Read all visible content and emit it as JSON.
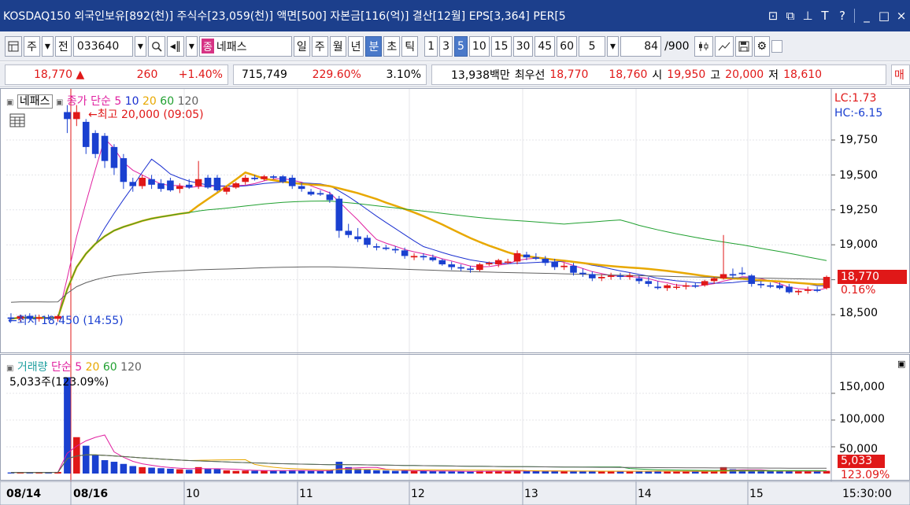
{
  "titlebar": {
    "text": "KOSDAQ150 외국인보유[892(천)] 주식수[23,059(천)] 액면[500] 자본금[116(억)] 결산[12월] EPS[3,364] PER[5",
    "buttons": [
      "⊡",
      "⧉",
      "⊥",
      "T",
      "?",
      "_",
      "□",
      "×"
    ]
  },
  "toolbar": {
    "type_label": "주",
    "prev_label": "전",
    "code": "033640",
    "name_badge": "종",
    "name": "네패스",
    "periods": [
      "일",
      "주",
      "월",
      "년",
      "분",
      "초",
      "틱"
    ],
    "active_period": "분",
    "intervals": [
      "1",
      "3",
      "5",
      "10",
      "15",
      "30",
      "45",
      "60"
    ],
    "active_interval": "5",
    "interval_select": "5",
    "count": "84",
    "count_total": "/900"
  },
  "pricebar": {
    "price": "18,770",
    "arrow": "▲",
    "change": "260",
    "change_pct": "+1.40%",
    "volume": "715,749",
    "vol_ratio": "229.60%",
    "turnover": "3.10%",
    "amount": "13,938백만",
    "best_label": "최우선",
    "ask": "18,770",
    "bid": "18,760",
    "open_label": "시",
    "open": "19,950",
    "high_label": "고",
    "high": "20,000",
    "low_label": "저",
    "low": "18,610",
    "more": "매"
  },
  "price_panel": {
    "legend_name": "네패스",
    "legend_ma": "종가 단순",
    "ma_periods": [
      "5",
      "10",
      "20",
      "60",
      "120"
    ],
    "ma_colors": [
      "#e020a0",
      "#1a2fd0",
      "#e8a800",
      "#20a030",
      "#606060"
    ],
    "high_note": "←최고 20,000 (09:05)",
    "low_note": "←최저 18,450 (14:55)",
    "lc": "LC:1.73",
    "hc": "HC:-6.15",
    "y_ticks": [
      "19,750",
      "19,500",
      "19,250",
      "19,000",
      "18,500"
    ],
    "current_tag": "18,770",
    "current_pct": "0.16%"
  },
  "volume_panel": {
    "legend_name": "거래량",
    "legend_ma": "단순",
    "ma_periods": [
      "5",
      "20",
      "60",
      "120"
    ],
    "ma_colors": [
      "#e020a0",
      "#e8a800",
      "#20a030",
      "#606060"
    ],
    "current_text": "5,033주(123.09%)",
    "y_ticks": [
      "150,000",
      "100,000",
      "50,000"
    ],
    "current_tag": "5,033",
    "current_pct": "123.09%"
  },
  "x_axis": {
    "labels": [
      "08/14",
      "08/16",
      "10",
      "11",
      "12",
      "13",
      "14",
      "15"
    ],
    "time": "15:30:00"
  },
  "chart_data": {
    "type": "candlestick",
    "candles": [
      {
        "o": 18480,
        "h": 18510,
        "l": 18450,
        "c": 18470
      },
      {
        "o": 18470,
        "h": 18500,
        "l": 18450,
        "c": 18490
      },
      {
        "o": 18490,
        "h": 18510,
        "l": 18460,
        "c": 18470
      },
      {
        "o": 18470,
        "h": 18500,
        "l": 18450,
        "c": 18480
      },
      {
        "o": 18480,
        "h": 18500,
        "l": 18460,
        "c": 18470
      },
      {
        "o": 18470,
        "h": 18500,
        "l": 18450,
        "c": 18490
      },
      {
        "o": 19950,
        "h": 20000,
        "l": 19800,
        "c": 19900
      },
      {
        "o": 19900,
        "h": 20000,
        "l": 19850,
        "c": 19950
      },
      {
        "o": 19880,
        "h": 19900,
        "l": 19650,
        "c": 19700
      },
      {
        "o": 19800,
        "h": 19820,
        "l": 19620,
        "c": 19650
      },
      {
        "o": 19780,
        "h": 19800,
        "l": 19550,
        "c": 19600
      },
      {
        "o": 19700,
        "h": 19720,
        "l": 19500,
        "c": 19550
      },
      {
        "o": 19620,
        "h": 19650,
        "l": 19400,
        "c": 19450
      },
      {
        "o": 19450,
        "h": 19480,
        "l": 19380,
        "c": 19420
      },
      {
        "o": 19420,
        "h": 19500,
        "l": 19400,
        "c": 19480
      },
      {
        "o": 19470,
        "h": 19500,
        "l": 19400,
        "c": 19430
      },
      {
        "o": 19440,
        "h": 19470,
        "l": 19380,
        "c": 19400
      },
      {
        "o": 19460,
        "h": 19480,
        "l": 19380,
        "c": 19390
      },
      {
        "o": 19400,
        "h": 19440,
        "l": 19370,
        "c": 19420
      },
      {
        "o": 19430,
        "h": 19470,
        "l": 19400,
        "c": 19410
      },
      {
        "o": 19420,
        "h": 19600,
        "l": 19400,
        "c": 19470
      },
      {
        "o": 19480,
        "h": 19500,
        "l": 19400,
        "c": 19410
      },
      {
        "o": 19480,
        "h": 19500,
        "l": 19380,
        "c": 19390
      },
      {
        "o": 19380,
        "h": 19420,
        "l": 19360,
        "c": 19410
      },
      {
        "o": 19410,
        "h": 19450,
        "l": 19400,
        "c": 19440
      },
      {
        "o": 19450,
        "h": 19500,
        "l": 19430,
        "c": 19480
      },
      {
        "o": 19480,
        "h": 19500,
        "l": 19460,
        "c": 19470
      },
      {
        "o": 19470,
        "h": 19500,
        "l": 19460,
        "c": 19490
      },
      {
        "o": 19490,
        "h": 19500,
        "l": 19470,
        "c": 19480
      },
      {
        "o": 19490,
        "h": 19500,
        "l": 19440,
        "c": 19450
      },
      {
        "o": 19480,
        "h": 19500,
        "l": 19400,
        "c": 19420
      },
      {
        "o": 19420,
        "h": 19440,
        "l": 19380,
        "c": 19400
      },
      {
        "o": 19380,
        "h": 19400,
        "l": 19350,
        "c": 19360
      },
      {
        "o": 19370,
        "h": 19390,
        "l": 19350,
        "c": 19360
      },
      {
        "o": 19360,
        "h": 19380,
        "l": 19300,
        "c": 19320
      },
      {
        "o": 19330,
        "h": 19350,
        "l": 19050,
        "c": 19100
      },
      {
        "o": 19100,
        "h": 19150,
        "l": 19050,
        "c": 19070
      },
      {
        "o": 19060,
        "h": 19120,
        "l": 19020,
        "c": 19040
      },
      {
        "o": 19050,
        "h": 19070,
        "l": 18980,
        "c": 19000
      },
      {
        "o": 18990,
        "h": 19010,
        "l": 18960,
        "c": 18980
      },
      {
        "o": 18980,
        "h": 19000,
        "l": 18960,
        "c": 18970
      },
      {
        "o": 18970,
        "h": 18990,
        "l": 18940,
        "c": 18960
      },
      {
        "o": 18960,
        "h": 18980,
        "l": 18900,
        "c": 18920
      },
      {
        "o": 18910,
        "h": 18940,
        "l": 18890,
        "c": 18920
      },
      {
        "o": 18920,
        "h": 18940,
        "l": 18890,
        "c": 18910
      },
      {
        "o": 18910,
        "h": 18930,
        "l": 18880,
        "c": 18890
      },
      {
        "o": 18890,
        "h": 18900,
        "l": 18850,
        "c": 18860
      },
      {
        "o": 18860,
        "h": 18880,
        "l": 18820,
        "c": 18840
      },
      {
        "o": 18840,
        "h": 18860,
        "l": 18810,
        "c": 18830
      },
      {
        "o": 18830,
        "h": 18850,
        "l": 18800,
        "c": 18820
      },
      {
        "o": 18820,
        "h": 18870,
        "l": 18810,
        "c": 18860
      },
      {
        "o": 18860,
        "h": 18880,
        "l": 18850,
        "c": 18870
      },
      {
        "o": 18860,
        "h": 18900,
        "l": 18840,
        "c": 18890
      },
      {
        "o": 18880,
        "h": 18900,
        "l": 18860,
        "c": 18880
      },
      {
        "o": 18880,
        "h": 18960,
        "l": 18860,
        "c": 18940
      },
      {
        "o": 18930,
        "h": 18950,
        "l": 18890,
        "c": 18910
      },
      {
        "o": 18910,
        "h": 18940,
        "l": 18890,
        "c": 18900
      },
      {
        "o": 18900,
        "h": 18920,
        "l": 18850,
        "c": 18870
      },
      {
        "o": 18880,
        "h": 18900,
        "l": 18820,
        "c": 18840
      },
      {
        "o": 18840,
        "h": 18870,
        "l": 18820,
        "c": 18850
      },
      {
        "o": 18850,
        "h": 18870,
        "l": 18780,
        "c": 18800
      },
      {
        "o": 18800,
        "h": 18830,
        "l": 18770,
        "c": 18790
      },
      {
        "o": 18790,
        "h": 18810,
        "l": 18740,
        "c": 18760
      },
      {
        "o": 18760,
        "h": 18790,
        "l": 18740,
        "c": 18770
      },
      {
        "o": 18770,
        "h": 18800,
        "l": 18750,
        "c": 18780
      },
      {
        "o": 18780,
        "h": 18800,
        "l": 18750,
        "c": 18770
      },
      {
        "o": 18770,
        "h": 18800,
        "l": 18750,
        "c": 18780
      },
      {
        "o": 18760,
        "h": 18780,
        "l": 18720,
        "c": 18740
      },
      {
        "o": 18740,
        "h": 18770,
        "l": 18700,
        "c": 18720
      },
      {
        "o": 18700,
        "h": 18740,
        "l": 18680,
        "c": 18690
      },
      {
        "o": 18690,
        "h": 18720,
        "l": 18670,
        "c": 18710
      },
      {
        "o": 18700,
        "h": 18720,
        "l": 18680,
        "c": 18700
      },
      {
        "o": 18700,
        "h": 18730,
        "l": 18680,
        "c": 18710
      },
      {
        "o": 18710,
        "h": 18730,
        "l": 18690,
        "c": 18700
      },
      {
        "o": 18710,
        "h": 18750,
        "l": 18700,
        "c": 18740
      },
      {
        "o": 18740,
        "h": 18770,
        "l": 18720,
        "c": 18760
      },
      {
        "o": 18760,
        "h": 19070,
        "l": 18750,
        "c": 18790
      },
      {
        "o": 18790,
        "h": 18830,
        "l": 18760,
        "c": 18780
      },
      {
        "o": 18800,
        "h": 18840,
        "l": 18780,
        "c": 18790
      },
      {
        "o": 18780,
        "h": 18790,
        "l": 18700,
        "c": 18720
      },
      {
        "o": 18720,
        "h": 18740,
        "l": 18690,
        "c": 18710
      },
      {
        "o": 18710,
        "h": 18730,
        "l": 18690,
        "c": 18700
      },
      {
        "o": 18710,
        "h": 18730,
        "l": 18680,
        "c": 18690
      },
      {
        "o": 18700,
        "h": 18720,
        "l": 18650,
        "c": 18660
      },
      {
        "o": 18660,
        "h": 18680,
        "l": 18640,
        "c": 18670
      },
      {
        "o": 18670,
        "h": 18700,
        "l": 18650,
        "c": 18680
      },
      {
        "o": 18680,
        "h": 18700,
        "l": 18660,
        "c": 18670
      },
      {
        "o": 18690,
        "h": 18780,
        "l": 18680,
        "c": 18770
      }
    ],
    "volume": [
      2000,
      2200,
      1800,
      2500,
      2100,
      3000,
      180000,
      68000,
      52000,
      35000,
      25000,
      22000,
      18000,
      14000,
      12000,
      11000,
      10000,
      9000,
      8000,
      7000,
      12000,
      9000,
      8500,
      6000,
      5000,
      5500,
      5200,
      6000,
      5800,
      5000,
      6500,
      5500,
      5000,
      4800,
      6000,
      22000,
      12000,
      9000,
      8000,
      6000,
      5500,
      5000,
      5200,
      4800,
      5000,
      4500,
      4200,
      4000,
      3800,
      3600,
      5000,
      4800,
      4500,
      4200,
      6000,
      5000,
      4600,
      4400,
      4800,
      4200,
      4500,
      4300,
      4100,
      4000,
      4300,
      4100,
      4200,
      4500,
      4300,
      4100,
      4000,
      3900,
      4000,
      3800,
      4200,
      4500,
      12000,
      8000,
      6000,
      5000,
      4500,
      4400,
      4300,
      4600,
      4200,
      4100,
      4000,
      5033
    ]
  }
}
